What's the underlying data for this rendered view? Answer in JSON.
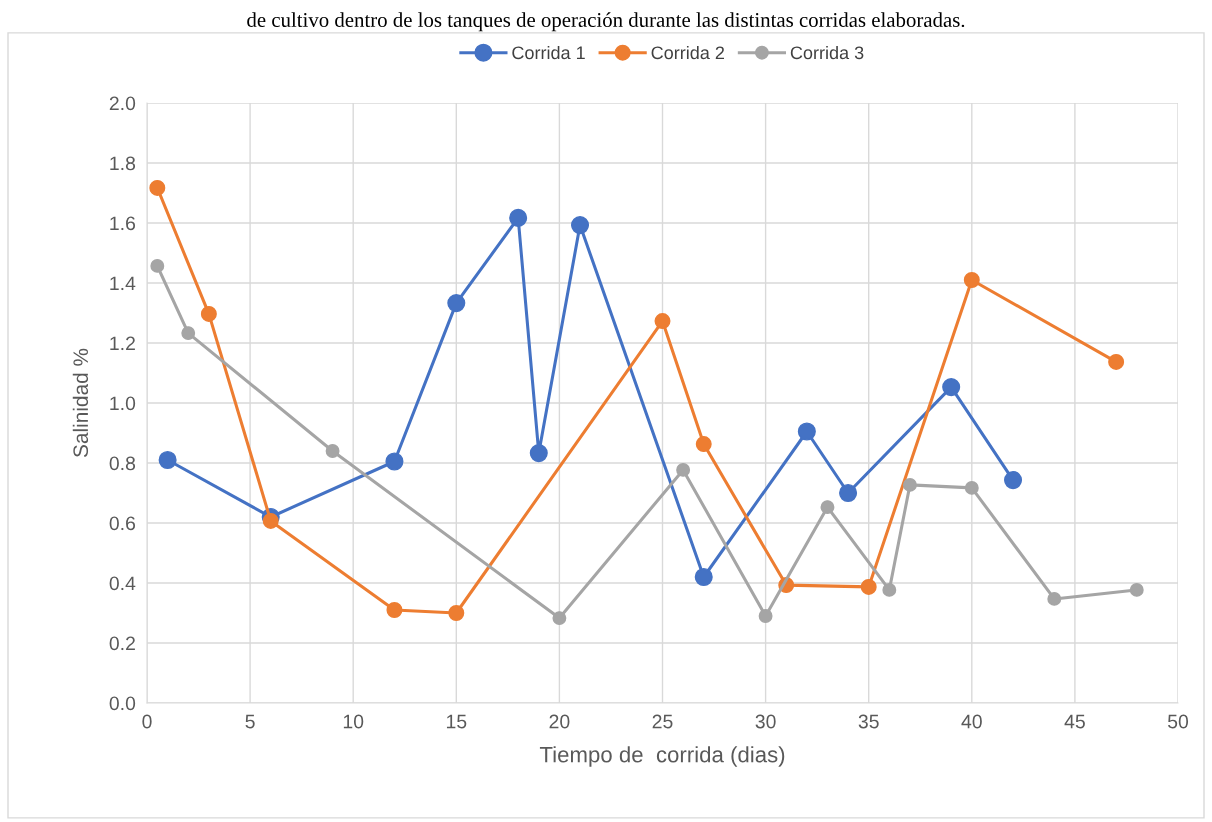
{
  "chart_data": {
    "type": "line",
    "annotations": [
      "de cultivo dentro de los tanques de operación durante las distintas corridas elaboradas."
    ],
    "xlabel": "Tiempo de  corrida (dias)",
    "ylabel": "Salinidad %",
    "series": [
      {
        "name": "Corrida 1",
        "color": "#4472c4",
        "x": [
          1,
          6,
          12,
          15,
          18,
          19,
          21,
          27,
          32,
          34,
          39,
          42
        ],
        "values": [
          0.81,
          0.62,
          0.805,
          1.333,
          1.617,
          0.833,
          1.593,
          0.42,
          0.905,
          0.7,
          1.053,
          0.743
        ]
      },
      {
        "name": "Corrida 2",
        "color": "#ed7d31",
        "x": [
          0.5,
          3,
          6,
          12,
          15,
          25,
          27,
          31,
          35,
          40,
          47
        ],
        "values": [
          1.717,
          1.297,
          0.607,
          0.31,
          0.3,
          1.273,
          0.863,
          0.393,
          0.387,
          1.41,
          1.137
        ]
      },
      {
        "name": "Corrida 3",
        "color": "#a5a5a5",
        "x": [
          0.5,
          2,
          9,
          20,
          26,
          30,
          33,
          36,
          37,
          40,
          44,
          48
        ],
        "values": [
          1.457,
          1.233,
          0.84,
          0.283,
          0.777,
          0.29,
          0.653,
          0.377,
          0.727,
          0.717,
          0.347,
          0.377
        ]
      }
    ],
    "xlim": [
      0,
      50
    ],
    "xticks": [
      0,
      5,
      10,
      15,
      20,
      25,
      30,
      35,
      40,
      45,
      50
    ],
    "ylim": [
      0,
      2.0
    ],
    "yticks": [
      {
        "value": 0,
        "label": "0.0"
      },
      {
        "value": 0.2,
        "label": "0.2"
      },
      {
        "value": 0.4,
        "label": "0.4"
      },
      {
        "value": 0.6,
        "label": "0.6"
      },
      {
        "value": 0.8,
        "label": "0.8"
      },
      {
        "value": 1.0,
        "label": "1.0"
      },
      {
        "value": 1.2,
        "label": "1.2"
      },
      {
        "value": 1.4,
        "label": "1.4"
      },
      {
        "value": 1.6,
        "label": "1.6"
      },
      {
        "value": 1.8,
        "label": "1.8"
      },
      {
        "value": 2.0,
        "label": "2.0"
      }
    ],
    "grid": true,
    "legend": "top",
    "marker": "circle",
    "line_style": "solid"
  }
}
